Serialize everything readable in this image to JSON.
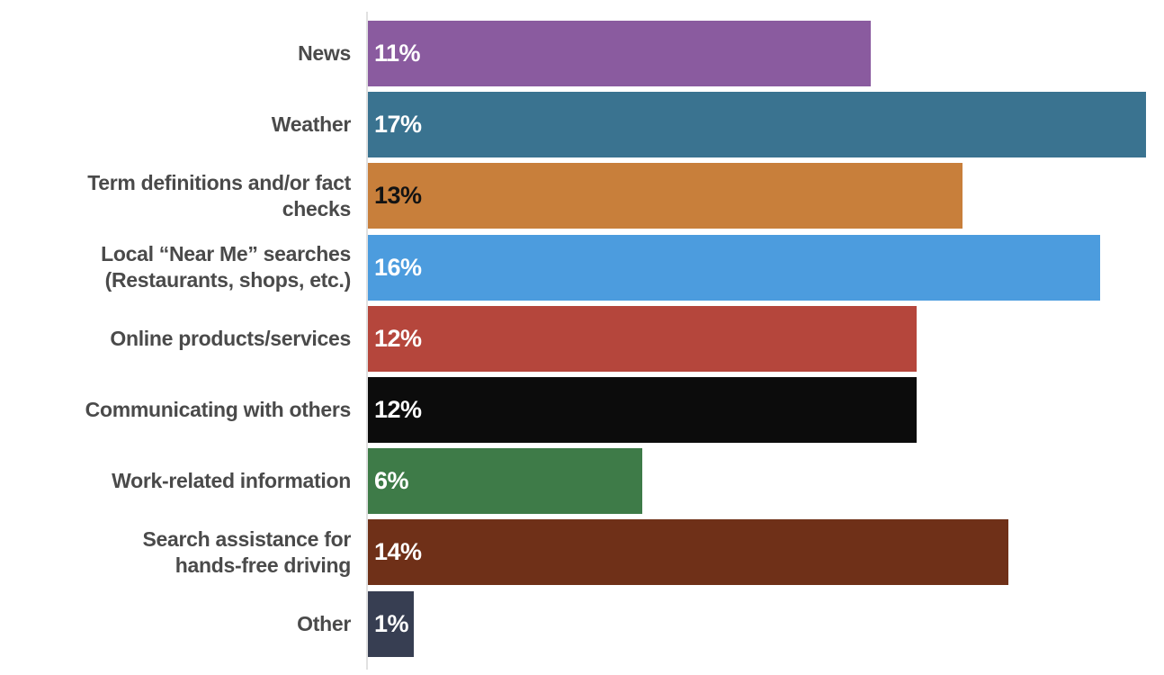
{
  "chart_data": {
    "type": "bar",
    "orientation": "horizontal",
    "title": "",
    "xlabel": "",
    "ylabel": "",
    "xlim": [
      0,
      17.4
    ],
    "grid": false,
    "legend": false,
    "categories": [
      "News",
      "Weather",
      "Term definitions and/or fact\nchecks",
      "Local “Near Me” searches\n(Restaurants, shops, etc.)",
      "Online products/services",
      "Communicating with others",
      "Work-related information",
      "Search assistance for\nhands-free driving",
      "Other"
    ],
    "values": [
      11,
      17,
      13,
      16,
      12,
      12,
      6,
      14,
      1
    ],
    "bars": [
      {
        "label": "News",
        "value": 11,
        "value_label": "11%",
        "color": "#8A5B9F",
        "value_label_color": "#FFFFFF"
      },
      {
        "label": "Weather",
        "value": 17,
        "value_label": "17%",
        "color": "#3A7390",
        "value_label_color": "#FFFFFF"
      },
      {
        "label": "Term definitions and/or fact\nchecks",
        "value": 13,
        "value_label": "13%",
        "color": "#C87F3B",
        "value_label_color": "#131313"
      },
      {
        "label": "Local “Near Me” searches\n(Restaurants, shops, etc.)",
        "value": 16,
        "value_label": "16%",
        "color": "#4C9CDE",
        "value_label_color": "#FFFFFF"
      },
      {
        "label": "Online products/services",
        "value": 12,
        "value_label": "12%",
        "color": "#B5463C",
        "value_label_color": "#FFFFFF"
      },
      {
        "label": "Communicating with others",
        "value": 12,
        "value_label": "12%",
        "color": "#0C0C0C",
        "value_label_color": "#FFFFFF"
      },
      {
        "label": "Work-related information",
        "value": 6,
        "value_label": "6%",
        "color": "#3E7B48",
        "value_label_color": "#FFFFFF"
      },
      {
        "label": "Search assistance for\nhands-free driving",
        "value": 14,
        "value_label": "14%",
        "color": "#6F3018",
        "value_label_color": "#FFFFFF"
      },
      {
        "label": "Other",
        "value": 1,
        "value_label": "1%",
        "color": "#373E52",
        "value_label_color": "#FFFFFF"
      }
    ],
    "colors": {
      "category_label": "#4A4A4A",
      "axis_line": "#E1E1E1",
      "background": "#FFFFFF"
    }
  }
}
